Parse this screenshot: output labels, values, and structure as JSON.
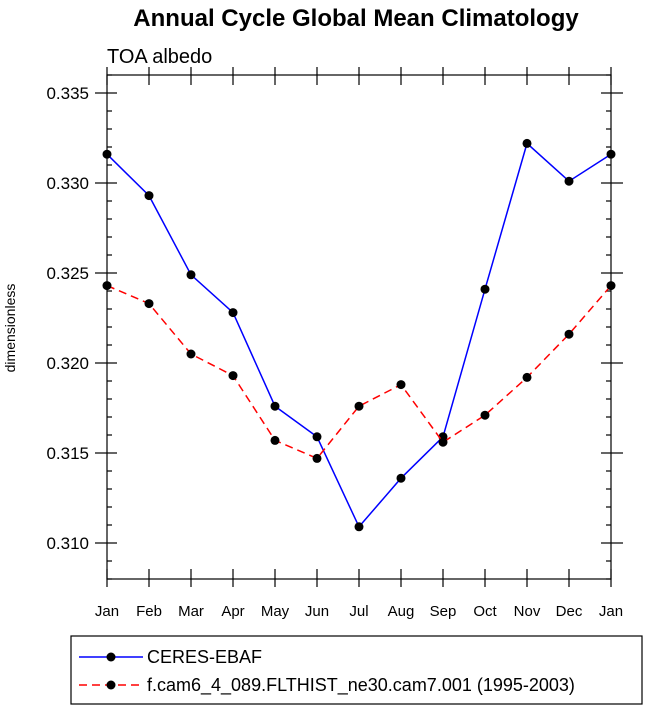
{
  "chart_data": {
    "type": "line",
    "title": "Annual Cycle Global Mean Climatology",
    "subtitle": "TOA albedo",
    "xlabel": "",
    "ylabel": "dimensionless",
    "categories": [
      "Jan",
      "Feb",
      "Mar",
      "Apr",
      "May",
      "Jun",
      "Jul",
      "Aug",
      "Sep",
      "Oct",
      "Nov",
      "Dec",
      "Jan"
    ],
    "ylim": [
      0.308,
      0.336
    ],
    "yticks": [
      0.31,
      0.315,
      0.32,
      0.325,
      0.33,
      0.335
    ],
    "ytick_labels": [
      "0.310",
      "0.315",
      "0.320",
      "0.325",
      "0.330",
      "0.335"
    ],
    "series": [
      {
        "name": "CERES-EBAF",
        "color": "#0000ff",
        "dash": "solid",
        "values": [
          0.3316,
          0.3293,
          0.3249,
          0.3228,
          0.3176,
          0.3159,
          0.3109,
          0.3136,
          0.3159,
          0.3241,
          0.3322,
          0.3301,
          0.3316
        ]
      },
      {
        "name": "f.cam6_4_089.FLTHIST_ne30.cam7.001 (1995-2003)",
        "color": "#ff0000",
        "dash": "dashed",
        "values": [
          0.3243,
          0.3233,
          0.3205,
          0.3193,
          0.3157,
          0.3147,
          0.3176,
          0.3188,
          0.3156,
          0.3171,
          0.3192,
          0.3216,
          0.3243
        ]
      }
    ],
    "legend_position": "bottom"
  }
}
